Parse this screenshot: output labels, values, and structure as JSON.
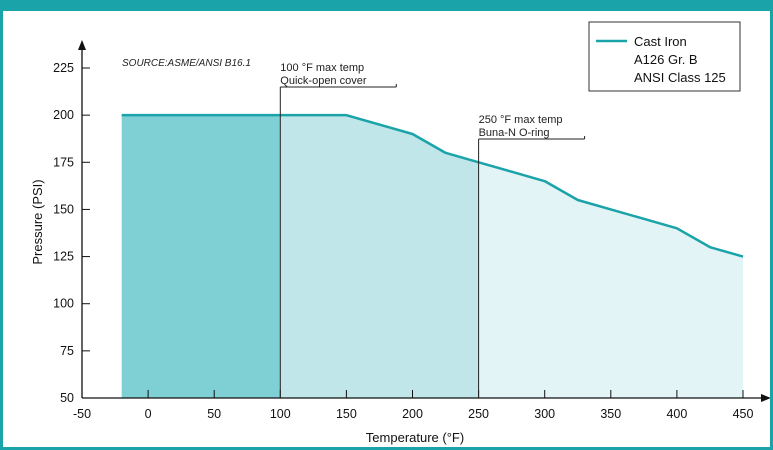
{
  "chart_data": {
    "type": "area",
    "xlabel": "Temperature (°F)",
    "ylabel": "Pressure (PSI)",
    "xlim": [
      -50,
      450
    ],
    "ylim": [
      50,
      225
    ],
    "x_ticks": [
      -50,
      0,
      50,
      100,
      150,
      200,
      250,
      300,
      350,
      400,
      450
    ],
    "y_ticks": [
      50,
      75,
      100,
      125,
      150,
      175,
      200,
      225
    ],
    "grid": false,
    "source": "SOURCE:ASME/ANSI B16.1",
    "series": [
      {
        "name": "Cast Iron A126 Gr. B ANSI Class 125",
        "color": "#1aa3a8",
        "x": [
          -20,
          100,
          150,
          200,
          225,
          250,
          275,
          300,
          325,
          350,
          375,
          400,
          425,
          450
        ],
        "y": [
          200,
          200,
          200,
          190,
          180,
          175,
          170,
          165,
          155,
          150,
          145,
          140,
          130,
          125
        ]
      }
    ],
    "regions": [
      {
        "from": -20,
        "to": 100,
        "color": "#7fd0d4"
      },
      {
        "from": 100,
        "to": 250,
        "color": "#c0e6ea"
      },
      {
        "from": 250,
        "to": 450,
        "color": "#e3f4f7"
      }
    ],
    "annotations": [
      {
        "x": 100,
        "lines": [
          "100 °F max temp",
          "Quick-open cover"
        ]
      },
      {
        "x": 250,
        "lines": [
          "250 °F max temp",
          "Buna-N O-ring"
        ]
      }
    ],
    "legend": {
      "position": "top-right",
      "lines": [
        "Cast Iron",
        "A126 Gr. B",
        "ANSI Class 125"
      ]
    }
  }
}
